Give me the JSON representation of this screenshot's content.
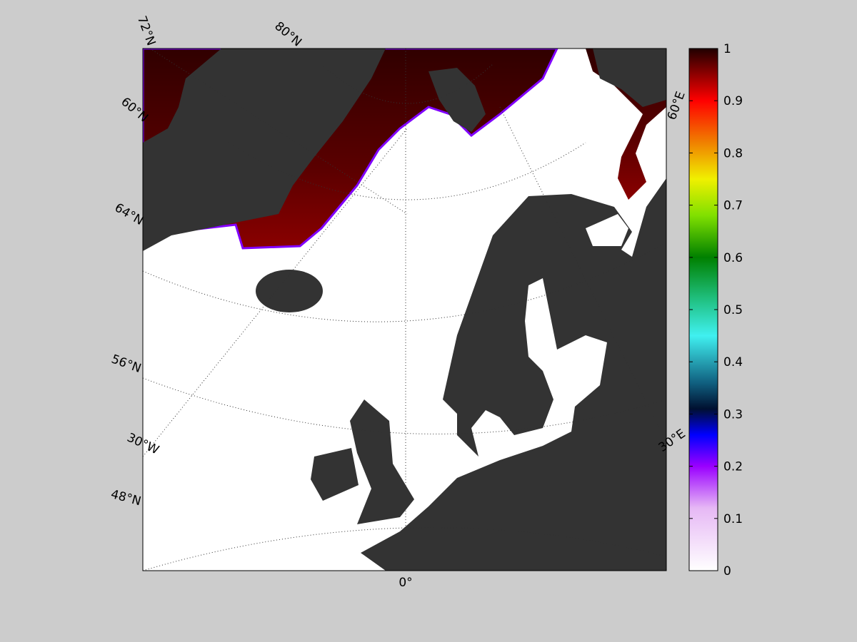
{
  "map": {
    "graticule_labels": [
      "72°N",
      "80°N",
      "60°N",
      "64°N",
      "56°N",
      "30°W",
      "48°N",
      "0°",
      "60°E",
      "30°E"
    ]
  },
  "colorbar": {
    "lim": [
      0,
      1
    ],
    "ticks": [
      0,
      0.1,
      0.2,
      0.3,
      0.4,
      0.5,
      0.6,
      0.7,
      0.8,
      0.9,
      1
    ]
  }
}
